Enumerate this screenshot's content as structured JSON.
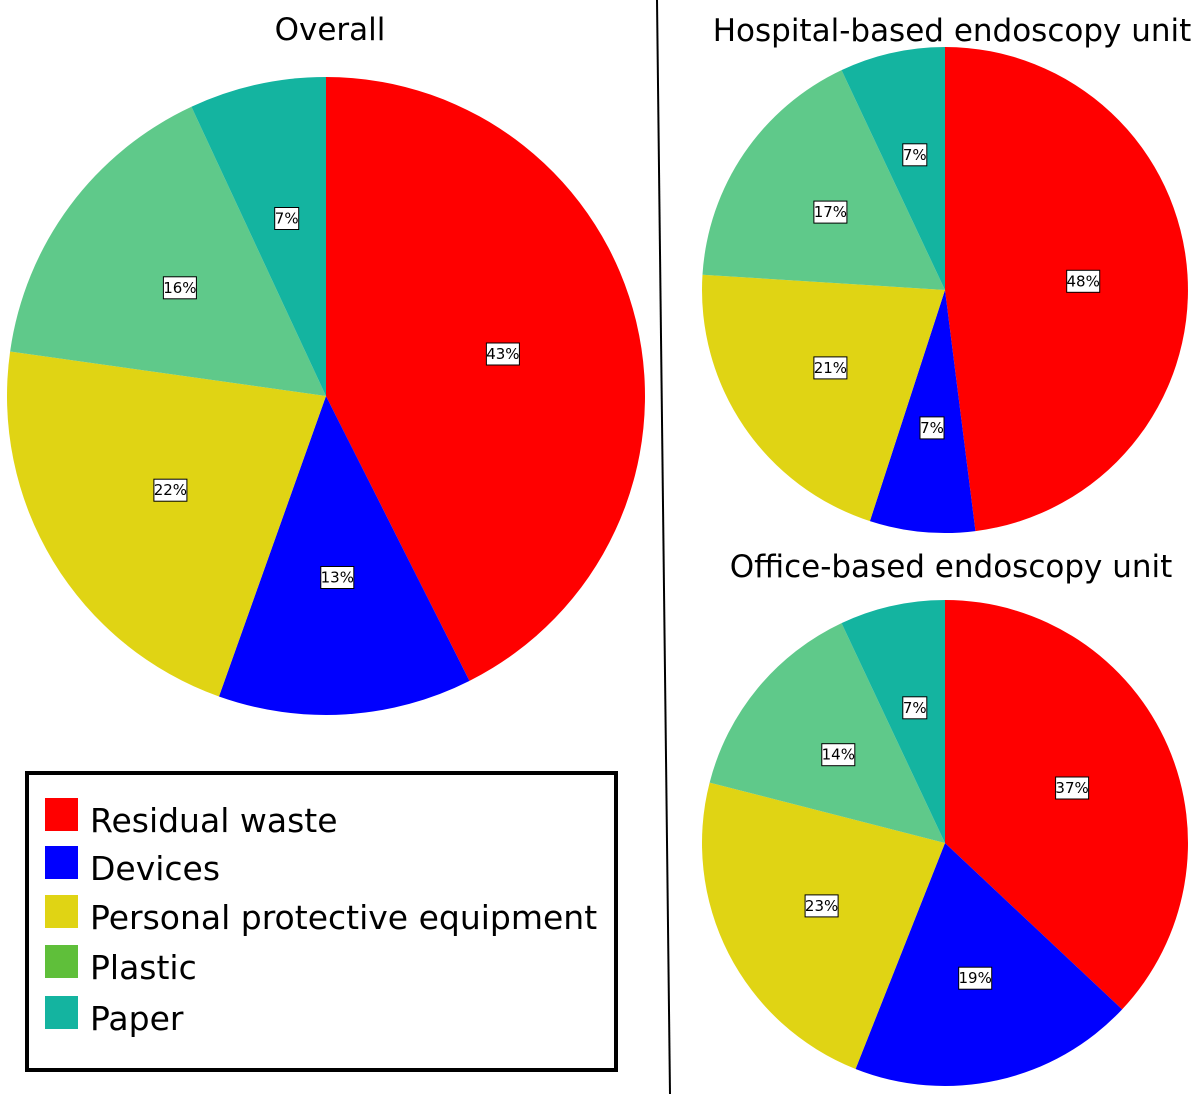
{
  "legend": {
    "items": [
      {
        "label": "Residual waste",
        "color": "#ff0000"
      },
      {
        "label": "Devices",
        "color": "#0000ff"
      },
      {
        "label": "Personal protective equipment",
        "color": "#e0d414"
      },
      {
        "label": "Plastic",
        "color": "#5fbf3a"
      },
      {
        "label": "Paper",
        "color": "#14b4a0"
      }
    ]
  },
  "chart_data": [
    {
      "type": "pie",
      "title": "Overall",
      "start": "12 o'clock",
      "direction": "clockwise",
      "slices": [
        {
          "category": "Residual waste",
          "value": 43,
          "label": "43%",
          "color": "#ff0000"
        },
        {
          "category": "Devices",
          "value": 13,
          "label": "13%",
          "color": "#0000ff"
        },
        {
          "category": "Personal protective equipment",
          "value": 22,
          "label": "22%",
          "color": "#e0d414"
        },
        {
          "category": "Plastic",
          "value": 16,
          "label": "16%",
          "color": "#5fc98a"
        },
        {
          "category": "Paper",
          "value": 7,
          "label": "7%",
          "color": "#14b4a0"
        }
      ]
    },
    {
      "type": "pie",
      "title": "Hospital-based endoscopy unit",
      "start": "12 o'clock",
      "direction": "clockwise",
      "slices": [
        {
          "category": "Residual waste",
          "value": 48,
          "label": "48%",
          "color": "#ff0000"
        },
        {
          "category": "Devices",
          "value": 7,
          "label": "7%",
          "color": "#0000ff"
        },
        {
          "category": "Personal protective equipment",
          "value": 21,
          "label": "21%",
          "color": "#e0d414"
        },
        {
          "category": "Plastic",
          "value": 17,
          "label": "17%",
          "color": "#5fc98a"
        },
        {
          "category": "Paper",
          "value": 7,
          "label": "7%",
          "color": "#14b4a0"
        }
      ]
    },
    {
      "type": "pie",
      "title": "Office-based endoscopy unit",
      "start": "12 o'clock",
      "direction": "clockwise",
      "slices": [
        {
          "category": "Residual waste",
          "value": 37,
          "label": "37%",
          "color": "#ff0000"
        },
        {
          "category": "Devices",
          "value": 19,
          "label": "19%",
          "color": "#0000ff"
        },
        {
          "category": "Personal protective equipment",
          "value": 23,
          "label": "23%",
          "color": "#e0d414"
        },
        {
          "category": "Plastic",
          "value": 14,
          "label": "14%",
          "color": "#5fc98a"
        },
        {
          "category": "Paper",
          "value": 7,
          "label": "7%",
          "color": "#14b4a0"
        }
      ]
    }
  ]
}
